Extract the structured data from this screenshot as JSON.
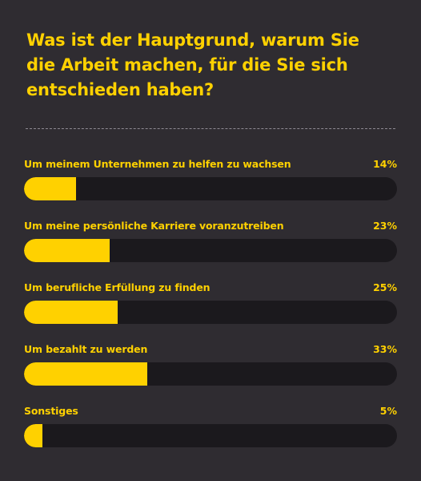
{
  "title": "Was ist der Hauptgrund, warum Sie die Arbeit machen, für die Sie sich entschieden haben?",
  "colors": {
    "background": "#2f2c31",
    "accent": "#ffd100",
    "track": "#1b191d",
    "divider": "#8f8a93"
  },
  "chart_data": {
    "type": "bar",
    "orientation": "horizontal",
    "title": "Was ist der Hauptgrund, warum Sie die Arbeit machen, für die Sie sich entschieden haben?",
    "categories": [
      "Um meinem Unternehmen zu helfen zu wachsen",
      "Um meine persönliche Karriere voranzutreiben",
      "Um berufliche Erfüllung zu finden",
      "Um bezahlt zu werden",
      "Sonstiges"
    ],
    "values": [
      14,
      23,
      25,
      33,
      5
    ],
    "value_labels": [
      "14%",
      "23%",
      "25%",
      "33%",
      "5%"
    ],
    "xlim": [
      0,
      100
    ],
    "grid": false,
    "legend": "none"
  }
}
